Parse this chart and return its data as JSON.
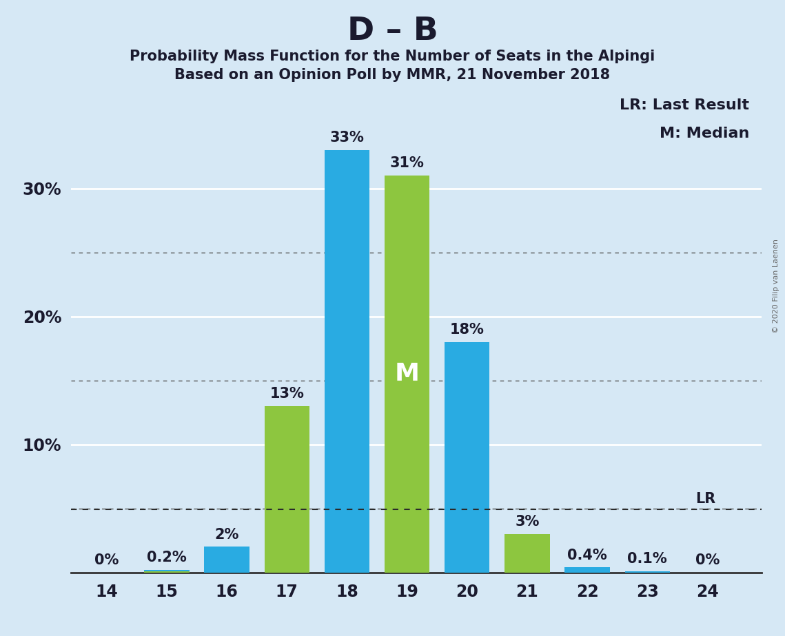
{
  "title_main": "D – B",
  "title_sub1": "Probability Mass Function for the Number of Seats in the Alpingi",
  "title_sub2": "Based on an Opinion Poll by MMR, 21 November 2018",
  "copyright": "© 2020 Filip van Laenen",
  "seats": [
    14,
    15,
    16,
    17,
    18,
    19,
    20,
    21,
    22,
    23,
    24
  ],
  "blue_values": [
    0.0,
    0.002,
    0.02,
    0.0,
    0.33,
    0.0,
    0.18,
    0.0,
    0.004,
    0.001,
    0.0
  ],
  "green_values": [
    0.0,
    0.001,
    0.0,
    0.13,
    0.0,
    0.31,
    0.0,
    0.03,
    0.0,
    0.0,
    0.0
  ],
  "blue_labels": [
    "0%",
    "0.2%",
    "2%",
    "",
    "33%",
    "",
    "18%",
    "",
    "0.4%",
    "0.1%",
    "0%"
  ],
  "green_labels": [
    "",
    "",
    "",
    "13%",
    "",
    "31%",
    "",
    "3%",
    "",
    "",
    ""
  ],
  "blue_color": "#29ABE2",
  "green_color": "#8DC63F",
  "bg_color": "#D6E8F5",
  "lr_value": 0.049,
  "lr_label": "LR",
  "median_seat": 19,
  "median_label": "M",
  "legend_lr": "LR: Last Result",
  "legend_m": "M: Median",
  "ylim": [
    0,
    0.375
  ],
  "yticks": [
    0.0,
    0.1,
    0.2,
    0.3
  ],
  "ytick_labels": [
    "",
    "10%",
    "20%",
    "30%"
  ],
  "bar_width": 0.75,
  "label_fontsize": 15,
  "tick_fontsize": 17,
  "title_fontsize": 34,
  "subtitle_fontsize": 15
}
